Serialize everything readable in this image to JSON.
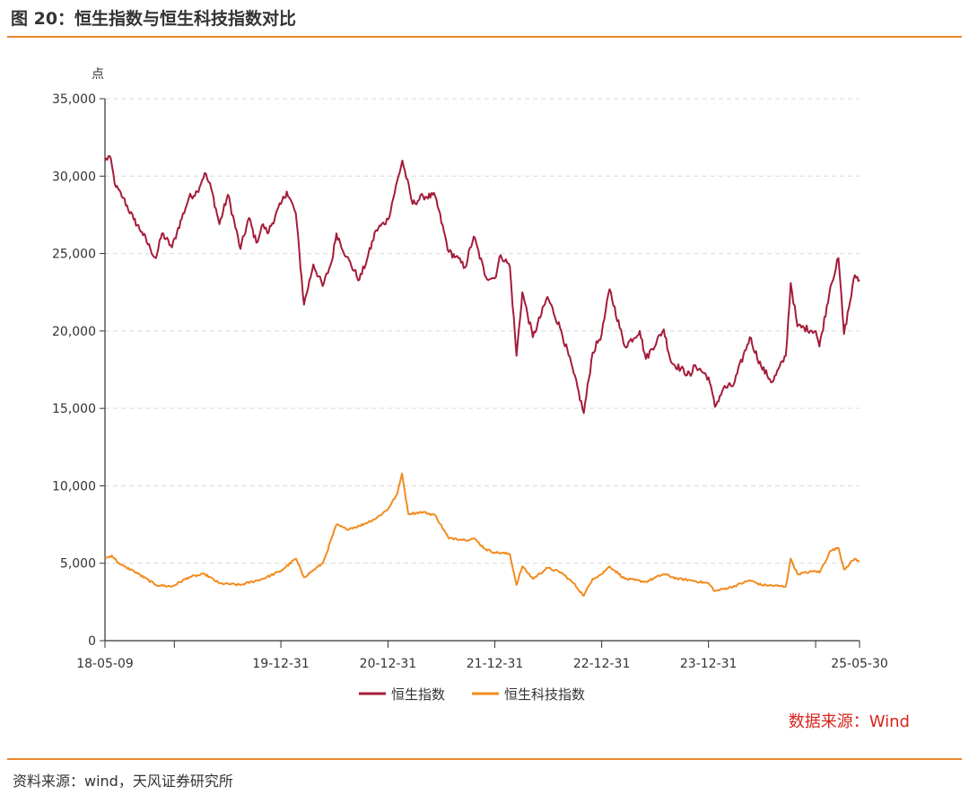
{
  "header": {
    "title": "图 20：恒生指数与恒生科技指数对比"
  },
  "footer": {
    "source": "资料来源：wind，天风证券研究所"
  },
  "chart_data": {
    "type": "line",
    "title": "图 20：恒生指数与恒生科技指数对比",
    "ylabel": "点",
    "xlabel": "",
    "ylim": [
      0,
      35000
    ],
    "yticks": [
      0,
      5000,
      10000,
      15000,
      20000,
      25000,
      30000,
      35000
    ],
    "ytick_labels": [
      "0",
      "5,000",
      "10,000",
      "15,000",
      "20,000",
      "25,000",
      "30,000",
      "35,000"
    ],
    "xlim": [
      "2018-05-09",
      "2025-05-30"
    ],
    "xticks": [
      "2018-05-09",
      "2019-01-01",
      "2019-12-31",
      "2020-12-31",
      "2021-12-31",
      "2022-12-31",
      "2023-12-31",
      "2024-12-31",
      "2025-05-30"
    ],
    "xtick_labels": [
      "18-05-09",
      "",
      "19-12-31",
      "20-12-31",
      "21-12-31",
      "22-12-31",
      "23-12-31",
      "",
      "25-05-30"
    ],
    "grid": "horizontal-dashed",
    "legend_position": "bottom",
    "annotation": "数据来源：Wind",
    "colors": {
      "hsi": "#a51c3a",
      "hstech": "#f28b1e",
      "axis": "#333333",
      "grid": "#d9d9d9",
      "accent": "#e8892b",
      "annotation": "#d9241c"
    },
    "series": [
      {
        "name": "恒生指数",
        "color": "#a51c3a",
        "points": [
          [
            "2018-05-09",
            31000
          ],
          [
            "2018-05-25",
            31300
          ],
          [
            "2018-06-15",
            29300
          ],
          [
            "2018-07-10",
            28600
          ],
          [
            "2018-08-15",
            27200
          ],
          [
            "2018-09-12",
            26400
          ],
          [
            "2018-10-11",
            25300
          ],
          [
            "2018-10-30",
            24700
          ],
          [
            "2018-11-20",
            26300
          ],
          [
            "2018-12-24",
            25400
          ],
          [
            "2019-01-10",
            26400
          ],
          [
            "2019-02-20",
            28600
          ],
          [
            "2019-03-20",
            29000
          ],
          [
            "2019-04-15",
            30200
          ],
          [
            "2019-05-07",
            29200
          ],
          [
            "2019-06-04",
            26900
          ],
          [
            "2019-07-03",
            28800
          ],
          [
            "2019-08-15",
            25300
          ],
          [
            "2019-09-13",
            27300
          ],
          [
            "2019-10-08",
            25700
          ],
          [
            "2019-10-31",
            26900
          ],
          [
            "2019-11-15",
            26300
          ],
          [
            "2019-12-31",
            28200
          ],
          [
            "2020-01-20",
            29000
          ],
          [
            "2020-02-20",
            27600
          ],
          [
            "2020-03-19",
            21700
          ],
          [
            "2020-04-20",
            24300
          ],
          [
            "2020-05-22",
            22900
          ],
          [
            "2020-06-22",
            24500
          ],
          [
            "2020-07-08",
            26300
          ],
          [
            "2020-08-11",
            24800
          ],
          [
            "2020-09-24",
            23300
          ],
          [
            "2020-10-20",
            24600
          ],
          [
            "2020-11-20",
            26500
          ],
          [
            "2020-12-31",
            27200
          ],
          [
            "2021-02-18",
            31000
          ],
          [
            "2021-03-25",
            28200
          ],
          [
            "2021-04-30",
            28700
          ],
          [
            "2021-06-10",
            28700
          ],
          [
            "2021-07-27",
            25100
          ],
          [
            "2021-08-20",
            24800
          ],
          [
            "2021-09-20",
            24100
          ],
          [
            "2021-10-20",
            26100
          ],
          [
            "2021-11-30",
            23500
          ],
          [
            "2021-12-31",
            23400
          ],
          [
            "2022-01-20",
            24900
          ],
          [
            "2022-02-20",
            24200
          ],
          [
            "2022-03-15",
            18400
          ],
          [
            "2022-04-04",
            22500
          ],
          [
            "2022-05-10",
            19600
          ],
          [
            "2022-06-29",
            22200
          ],
          [
            "2022-08-15",
            20000
          ],
          [
            "2022-09-26",
            17300
          ],
          [
            "2022-10-31",
            14700
          ],
          [
            "2022-11-30",
            18600
          ],
          [
            "2022-12-31",
            19800
          ],
          [
            "2023-01-27",
            22700
          ],
          [
            "2023-03-20",
            19000
          ],
          [
            "2023-05-10",
            20000
          ],
          [
            "2023-05-31",
            18200
          ],
          [
            "2023-07-31",
            20100
          ],
          [
            "2023-08-25",
            18000
          ],
          [
            "2023-10-31",
            17100
          ],
          [
            "2023-11-15",
            17800
          ],
          [
            "2023-12-31",
            17000
          ],
          [
            "2024-01-22",
            15100
          ],
          [
            "2024-02-20",
            16300
          ],
          [
            "2024-03-25",
            16500
          ],
          [
            "2024-05-20",
            19600
          ],
          [
            "2024-06-28",
            17700
          ],
          [
            "2024-08-05",
            16700
          ],
          [
            "2024-09-20",
            18400
          ],
          [
            "2024-10-07",
            23100
          ],
          [
            "2024-10-30",
            20300
          ],
          [
            "2024-12-31",
            20000
          ],
          [
            "2025-01-13",
            19000
          ],
          [
            "2025-02-20",
            22900
          ],
          [
            "2025-03-19",
            24700
          ],
          [
            "2025-04-07",
            19800
          ],
          [
            "2025-05-14",
            23600
          ],
          [
            "2025-05-30",
            23300
          ]
        ]
      },
      {
        "name": "恒生科技指数",
        "color": "#f28b1e",
        "points": [
          [
            "2018-05-09",
            5300
          ],
          [
            "2018-06-01",
            5500
          ],
          [
            "2018-07-01",
            4900
          ],
          [
            "2018-08-15",
            4500
          ],
          [
            "2018-10-30",
            3600
          ],
          [
            "2018-12-24",
            3500
          ],
          [
            "2019-02-20",
            4100
          ],
          [
            "2019-04-15",
            4300
          ],
          [
            "2019-06-04",
            3700
          ],
          [
            "2019-08-15",
            3600
          ],
          [
            "2019-10-31",
            4000
          ],
          [
            "2019-12-31",
            4500
          ],
          [
            "2020-02-20",
            5300
          ],
          [
            "2020-03-19",
            4100
          ],
          [
            "2020-05-22",
            5000
          ],
          [
            "2020-06-01",
            5500
          ],
          [
            "2020-07-08",
            7500
          ],
          [
            "2020-08-10",
            7200
          ],
          [
            "2020-09-24",
            7400
          ],
          [
            "2020-11-20",
            7900
          ],
          [
            "2020-12-31",
            8500
          ],
          [
            "2021-02-01",
            9500
          ],
          [
            "2021-02-17",
            10800
          ],
          [
            "2021-03-10",
            8200
          ],
          [
            "2021-04-30",
            8300
          ],
          [
            "2021-06-10",
            8100
          ],
          [
            "2021-07-27",
            6600
          ],
          [
            "2021-08-20",
            6600
          ],
          [
            "2021-09-20",
            6500
          ],
          [
            "2021-10-20",
            6600
          ],
          [
            "2021-11-30",
            5900
          ],
          [
            "2021-12-31",
            5700
          ],
          [
            "2022-02-20",
            5600
          ],
          [
            "2022-03-15",
            3600
          ],
          [
            "2022-04-04",
            4800
          ],
          [
            "2022-05-10",
            4000
          ],
          [
            "2022-06-29",
            4700
          ],
          [
            "2022-08-15",
            4400
          ],
          [
            "2022-09-26",
            3700
          ],
          [
            "2022-10-31",
            2900
          ],
          [
            "2022-11-30",
            4000
          ],
          [
            "2022-12-31",
            4300
          ],
          [
            "2023-01-27",
            4800
          ],
          [
            "2023-03-20",
            4000
          ],
          [
            "2023-05-31",
            3800
          ],
          [
            "2023-07-31",
            4300
          ],
          [
            "2023-09-15",
            4000
          ],
          [
            "2023-10-31",
            3900
          ],
          [
            "2023-12-31",
            3700
          ],
          [
            "2024-01-22",
            3200
          ],
          [
            "2024-03-25",
            3500
          ],
          [
            "2024-05-20",
            3900
          ],
          [
            "2024-06-28",
            3600
          ],
          [
            "2024-09-20",
            3500
          ],
          [
            "2024-10-07",
            5300
          ],
          [
            "2024-10-30",
            4300
          ],
          [
            "2024-12-31",
            4500
          ],
          [
            "2025-01-13",
            4400
          ],
          [
            "2025-02-20",
            5800
          ],
          [
            "2025-03-19",
            6000
          ],
          [
            "2025-04-07",
            4600
          ],
          [
            "2025-05-14",
            5300
          ],
          [
            "2025-05-30",
            5100
          ]
        ]
      }
    ]
  }
}
